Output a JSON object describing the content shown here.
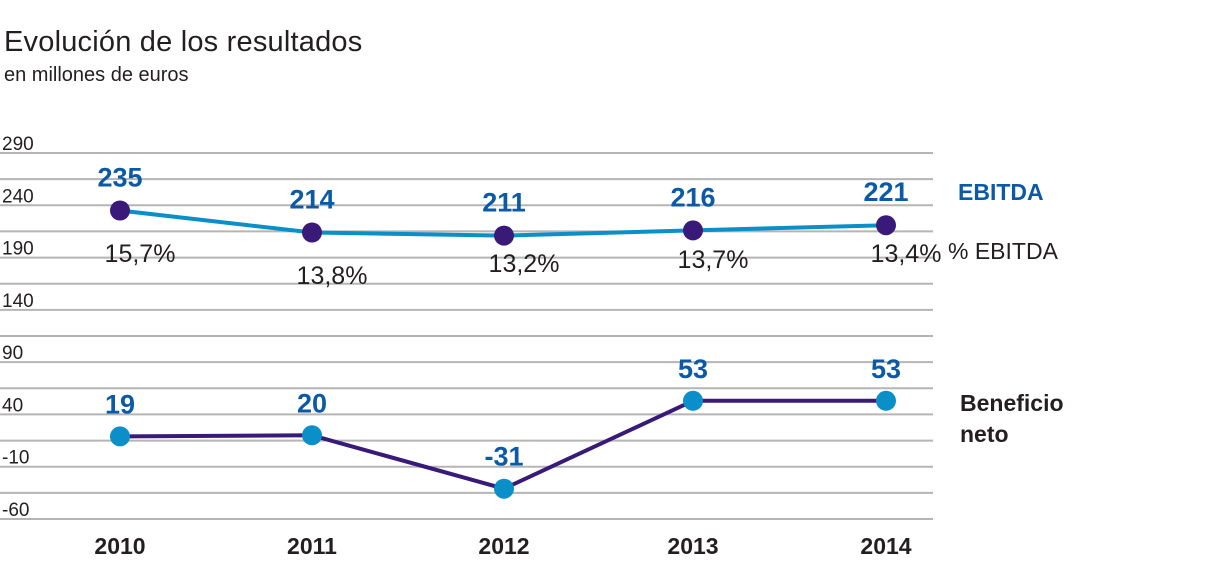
{
  "chart_data": {
    "type": "line",
    "title": "Evolución de los resultados",
    "subtitle": "en millones de euros",
    "categories": [
      "2010",
      "2011",
      "2012",
      "2013",
      "2014"
    ],
    "ylim": [
      -60,
      290
    ],
    "yticks": [
      "290",
      "240",
      "190",
      "140",
      "90",
      "40",
      "-10",
      "-60"
    ],
    "series": [
      {
        "name": "EBITDA",
        "values": [
          235,
          214,
          211,
          216,
          221
        ],
        "labels": [
          "235",
          "214",
          "211",
          "216",
          "221"
        ],
        "line_color": "#0a8fc9",
        "marker_color": "#3a1a78"
      },
      {
        "name": "Beneficio neto",
        "values": [
          19,
          20,
          -31,
          53,
          53
        ],
        "labels": [
          "19",
          "20",
          "-31",
          "53",
          "53"
        ],
        "line_color": "#3a1a78",
        "marker_color": "#0a8fc9"
      }
    ],
    "ebitda_margin": {
      "name": "% EBITDA",
      "labels": [
        "15,7%",
        "13,8%",
        "13,2%",
        "13,7%",
        "13,4%"
      ]
    },
    "legend": {
      "ebitda": "EBITDA",
      "ebitda_pct": "% EBITDA",
      "net_line1": "Beneficio",
      "net_line2": "neto"
    },
    "colors": {
      "gridline": "#b5b5b5",
      "label_blue": "#0c5aa6",
      "text": "#231f20"
    }
  }
}
